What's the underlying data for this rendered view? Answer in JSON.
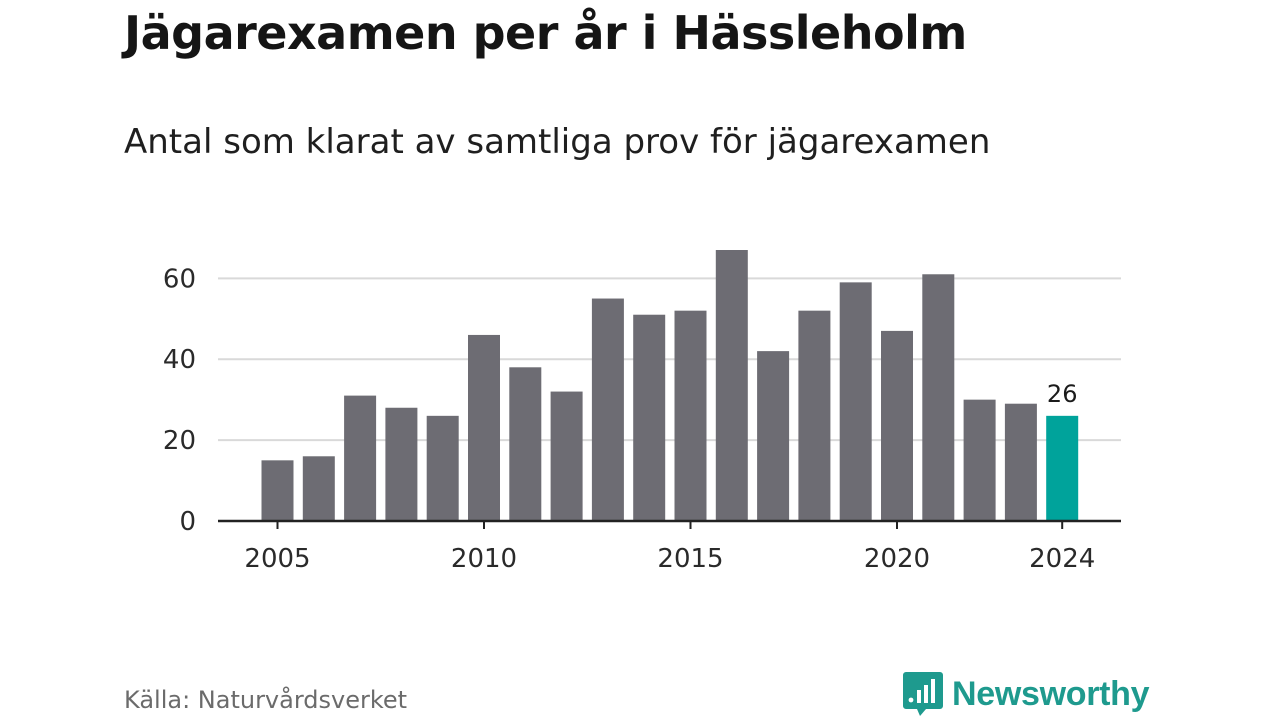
{
  "title": "Jägarexamen per år i Hässleholm",
  "subtitle": "Antal som klarat av samtliga prov för jägarexamen",
  "source": "Källa: Naturvårdsverket",
  "brand": {
    "name": "Newsworthy",
    "icon": "newsworthy-logo-icon",
    "color": "#1e9a8e"
  },
  "colors": {
    "bar": "#6d6c73",
    "highlight": "#00a39b",
    "grid": "#d9d9d9",
    "axis": "#222222"
  },
  "chart_data": {
    "type": "bar",
    "title": "",
    "xlabel": "",
    "ylabel": "",
    "categories": [
      2005,
      2006,
      2007,
      2008,
      2009,
      2010,
      2011,
      2012,
      2013,
      2014,
      2015,
      2016,
      2017,
      2018,
      2019,
      2020,
      2021,
      2022,
      2023,
      2024
    ],
    "values": [
      15,
      16,
      31,
      28,
      26,
      46,
      38,
      32,
      55,
      51,
      52,
      67,
      42,
      52,
      59,
      47,
      61,
      30,
      29,
      26
    ],
    "ylim": [
      0,
      67
    ],
    "yticks": [
      0,
      20,
      40,
      60
    ],
    "xticks": [
      "2005",
      "2010",
      "2015",
      "2020",
      "2024"
    ],
    "highlight": {
      "category": 2024,
      "label": "26"
    },
    "grid": true,
    "legend": "none"
  }
}
